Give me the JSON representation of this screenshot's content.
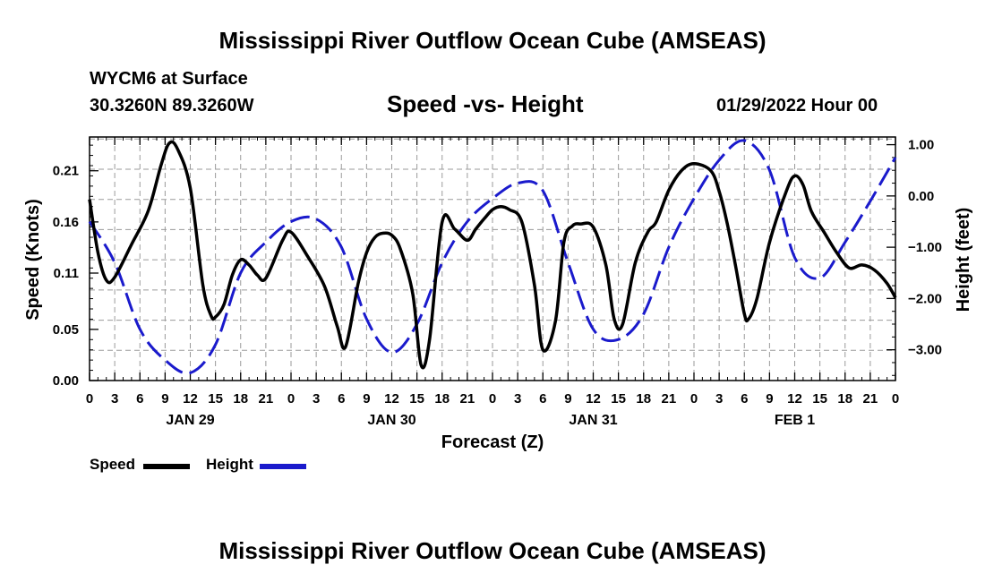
{
  "page": {
    "title_top": "Mississippi River Outflow Ocean Cube (AMSEAS)",
    "title_bottom": "Mississippi River Outflow Ocean Cube (AMSEAS)",
    "station": "WYCM6 at Surface",
    "coords": "30.3260N  89.3260W",
    "subtitle": "Speed -vs- Height",
    "datetime": "01/29/2022 Hour 00"
  },
  "legend": {
    "speed_label": "Speed",
    "height_label": "Height",
    "speed_color": "#000000",
    "height_color": "#1a1acc"
  },
  "chart_data": {
    "type": "line",
    "xlabel": "Forecast (Z)",
    "ylabel_left": "Speed (Knots)",
    "ylabel_right": "Height (feet)",
    "x_range_hours": [
      0,
      96
    ],
    "ylim_left": [
      0,
      0.238
    ],
    "ylim_right": [
      -3.6,
      1.15
    ],
    "left_ticks": [
      "0.00",
      "0.05",
      "0.11",
      "0.16",
      "0.21"
    ],
    "left_tick_values": [
      0,
      0.05,
      0.105,
      0.155,
      0.205
    ],
    "right_ticks": [
      "1.00",
      "0.00",
      "−1.00",
      "−2.00",
      "−3.00"
    ],
    "right_tick_values": [
      1,
      0,
      -1,
      -2,
      -3
    ],
    "x_tick_labels": [
      "0",
      "3",
      "6",
      "9",
      "12",
      "15",
      "18",
      "21",
      "0",
      "3",
      "6",
      "9",
      "12",
      "15",
      "18",
      "21",
      "0",
      "3",
      "6",
      "9",
      "12",
      "15",
      "18",
      "21",
      "0",
      "3",
      "6",
      "9",
      "12",
      "15",
      "18",
      "21",
      "0"
    ],
    "day_labels": [
      {
        "label": "JAN 29",
        "hour": 12
      },
      {
        "label": "JAN 30",
        "hour": 36
      },
      {
        "label": "JAN 31",
        "hour": 60
      },
      {
        "label": "FEB 1",
        "hour": 84
      }
    ],
    "series": [
      {
        "name": "Speed",
        "axis": "left",
        "x": [
          0,
          1,
          2,
          3,
          5,
          7,
          8.5,
          9.5,
          10.5,
          12,
          13.5,
          14.5,
          15,
          16,
          17,
          18,
          19,
          20,
          21,
          23,
          24,
          26,
          28,
          29.5,
          30.5,
          32,
          33,
          34,
          35,
          36,
          37,
          38.5,
          39.5,
          40.5,
          42,
          43.5,
          45,
          46,
          47,
          48,
          49,
          50,
          51.5,
          53,
          54,
          55.5,
          56.5,
          57.5,
          58.5,
          60,
          61.5,
          62.5,
          63.5,
          65,
          66.5,
          67.5,
          69,
          70.5,
          72,
          74,
          75,
          76,
          77,
          78,
          78.5,
          79.5,
          81,
          83,
          84,
          85,
          86,
          87.5,
          89,
          90.5,
          92,
          93.5,
          95,
          96
        ],
        "y": [
          0.177,
          0.125,
          0.098,
          0.101,
          0.133,
          0.166,
          0.21,
          0.232,
          0.226,
          0.188,
          0.093,
          0.063,
          0.062,
          0.074,
          0.103,
          0.118,
          0.113,
          0.103,
          0.1,
          0.137,
          0.145,
          0.121,
          0.092,
          0.053,
          0.033,
          0.095,
          0.125,
          0.14,
          0.144,
          0.142,
          0.129,
          0.085,
          0.015,
          0.04,
          0.155,
          0.148,
          0.137,
          0.148,
          0.158,
          0.167,
          0.17,
          0.167,
          0.155,
          0.093,
          0.03,
          0.058,
          0.135,
          0.151,
          0.153,
          0.15,
          0.113,
          0.06,
          0.055,
          0.115,
          0.145,
          0.155,
          0.186,
          0.205,
          0.212,
          0.205,
          0.185,
          0.152,
          0.11,
          0.065,
          0.06,
          0.08,
          0.135,
          0.185,
          0.2,
          0.191,
          0.165,
          0.145,
          0.125,
          0.11,
          0.113,
          0.108,
          0.095,
          0.081
        ]
      },
      {
        "name": "Height",
        "axis": "right",
        "x": [
          0,
          3,
          6,
          9,
          12,
          15,
          18,
          21,
          24,
          27,
          30,
          33,
          36,
          39,
          42,
          45,
          48,
          51,
          54,
          57,
          60,
          63,
          66,
          69,
          72,
          75,
          78,
          81,
          84,
          87,
          90,
          93,
          96
        ],
        "y": [
          -0.5,
          -1.3,
          -2.6,
          -3.2,
          -3.45,
          -2.9,
          -1.5,
          -0.9,
          -0.5,
          -0.45,
          -1.0,
          -2.4,
          -3.05,
          -2.5,
          -1.3,
          -0.5,
          -0.05,
          0.25,
          0.1,
          -1.3,
          -2.6,
          -2.8,
          -2.3,
          -1.0,
          -0.05,
          0.7,
          1.08,
          0.5,
          -1.2,
          -1.6,
          -0.9,
          -0.1,
          0.75
        ]
      }
    ]
  }
}
